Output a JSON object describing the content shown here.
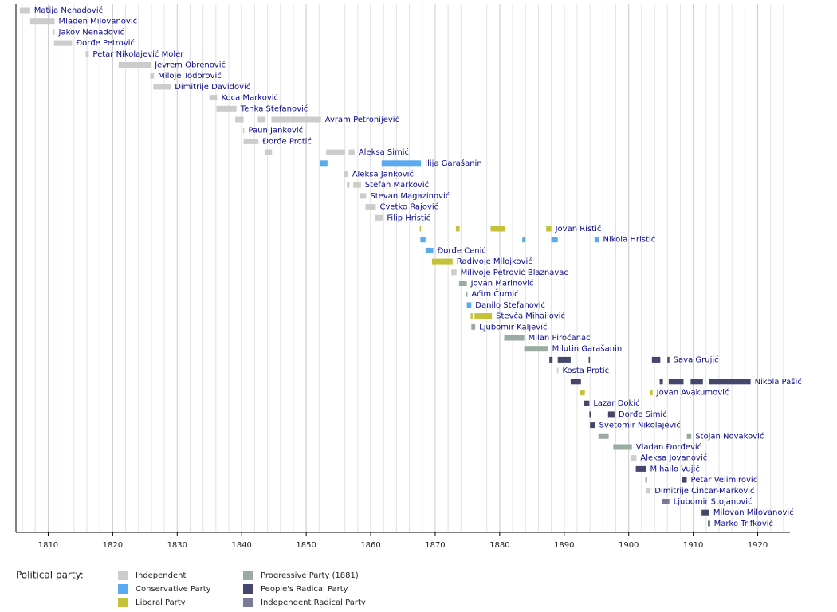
{
  "chart_data": {
    "type": "gantt",
    "xlim": [
      1805,
      1925
    ],
    "xticks": [
      1810,
      1820,
      1830,
      1840,
      1850,
      1860,
      1870,
      1880,
      1890,
      1900,
      1910,
      1920
    ],
    "grid_step": 2,
    "legend_title": "Political party:",
    "parties": [
      {
        "name": "Independent",
        "color": "#cccccc"
      },
      {
        "name": "Conservative Party",
        "color": "#5aaaf0"
      },
      {
        "name": "Liberal Party",
        "color": "#c4c23a"
      },
      {
        "name": "Progressive Party (1881)",
        "color": "#9aaca2"
      },
      {
        "name": "People's Radical Party",
        "color": "#44476a"
      },
      {
        "name": "Independent Radical Party",
        "color": "#7b7b96"
      }
    ],
    "rows": [
      {
        "name": "Matija Nenadović",
        "party": 0,
        "periods": [
          [
            1805.6,
            1807.2
          ]
        ]
      },
      {
        "name": "Mladen Milovanović",
        "party": 0,
        "periods": [
          [
            1807.2,
            1811.0
          ]
        ]
      },
      {
        "name": "Jakov Nenadović",
        "party": 0,
        "periods": [
          [
            1810.8,
            1811.0
          ]
        ]
      },
      {
        "name": "Đorđe Petrović",
        "party": 0,
        "periods": [
          [
            1810.9,
            1813.7
          ]
        ]
      },
      {
        "name": "Petar Nikolajević Moler",
        "party": 0,
        "periods": [
          [
            1815.8,
            1816.3
          ]
        ]
      },
      {
        "name": "Jevrem Obrenović",
        "party": 0,
        "periods": [
          [
            1820.9,
            1825.9
          ]
        ]
      },
      {
        "name": "Miloje Todorović",
        "party": 0,
        "periods": [
          [
            1825.8,
            1826.4
          ]
        ]
      },
      {
        "name": "Dimitrije Davidović",
        "party": 0,
        "periods": [
          [
            1826.3,
            1829.0
          ]
        ]
      },
      {
        "name": "Koca Marković",
        "party": 0,
        "periods": [
          [
            1835.0,
            1836.2
          ]
        ]
      },
      {
        "name": "Tenka Stefanović",
        "party": 0,
        "periods": [
          [
            1836.1,
            1839.2
          ]
        ]
      },
      {
        "name": "Avram Petronijević",
        "party": 0,
        "periods": [
          [
            1839.0,
            1840.3
          ],
          [
            1842.5,
            1843.7
          ],
          [
            1844.6,
            1852.3
          ]
        ]
      },
      {
        "name": "Paun Janković",
        "party": 0,
        "periods": [
          [
            1840.2,
            1840.4
          ]
        ]
      },
      {
        "name": "Đorđe Protić",
        "party": 0,
        "periods": [
          [
            1840.3,
            1842.6
          ]
        ]
      },
      {
        "name": "Aleksa Simić",
        "party": 0,
        "periods": [
          [
            1843.6,
            1844.7
          ],
          [
            1853.1,
            1856.0
          ],
          [
            1856.6,
            1857.5
          ]
        ]
      },
      {
        "name": "Ilija Garašanin",
        "party": 1,
        "periods": [
          [
            1852.1,
            1853.3
          ],
          [
            1861.7,
            1867.8
          ]
        ]
      },
      {
        "name": "Aleksa Janković",
        "party": 0,
        "periods": [
          [
            1855.9,
            1856.5
          ]
        ]
      },
      {
        "name": "Stefan Marković",
        "party": 0,
        "periods": [
          [
            1856.3,
            1856.7
          ],
          [
            1857.3,
            1858.5
          ]
        ]
      },
      {
        "name": "Stevan Magazinović",
        "party": 0,
        "periods": [
          [
            1858.3,
            1859.3
          ]
        ]
      },
      {
        "name": "Cvetko Rajović",
        "party": 0,
        "periods": [
          [
            1859.2,
            1860.8
          ]
        ]
      },
      {
        "name": "Filip Hristić",
        "party": 0,
        "periods": [
          [
            1860.7,
            1861.9
          ]
        ]
      },
      {
        "name": "Jovan Ristić",
        "party": 2,
        "periods": [
          [
            1867.6,
            1867.8
          ],
          [
            1873.2,
            1873.8
          ],
          [
            1878.6,
            1880.8
          ],
          [
            1887.2,
            1888.0
          ]
        ]
      },
      {
        "name": "Nikola Hristić",
        "party": 1,
        "periods": [
          [
            1867.7,
            1868.5
          ],
          [
            1883.5,
            1884.0
          ],
          [
            1888.0,
            1889.0
          ],
          [
            1894.7,
            1895.4
          ]
        ]
      },
      {
        "name": "Đorđe Cenić",
        "party": 1,
        "periods": [
          [
            1868.5,
            1869.7
          ]
        ]
      },
      {
        "name": "Radivoje Milojković",
        "party": 2,
        "periods": [
          [
            1869.5,
            1872.7
          ]
        ]
      },
      {
        "name": "Milivoje Petrović Blaznavac",
        "party": 0,
        "periods": [
          [
            1872.5,
            1873.3
          ]
        ]
      },
      {
        "name": "Jovan Marinović",
        "party": 3,
        "periods": [
          [
            1873.7,
            1874.9
          ]
        ]
      },
      {
        "name": "Aćim Čumić",
        "party": 3,
        "periods": [
          [
            1874.8,
            1875.0
          ]
        ]
      },
      {
        "name": "Danilo Stefanović",
        "party": 1,
        "periods": [
          [
            1874.9,
            1875.6
          ]
        ]
      },
      {
        "name": "Stevča Mihailović",
        "party": 2,
        "periods": [
          [
            1875.5,
            1875.8
          ],
          [
            1876.1,
            1878.8
          ]
        ]
      },
      {
        "name": "Ljubomir Kaljević",
        "party": 3,
        "periods": [
          [
            1875.6,
            1876.2
          ]
        ]
      },
      {
        "name": "Milan Piroćanac",
        "party": 3,
        "periods": [
          [
            1880.7,
            1883.8
          ]
        ]
      },
      {
        "name": "Milutin Garašanin",
        "party": 3,
        "periods": [
          [
            1883.8,
            1887.5
          ]
        ]
      },
      {
        "name": "Sava Grujić",
        "party": 4,
        "periods": [
          [
            1887.7,
            1888.2
          ],
          [
            1889.0,
            1891.0
          ],
          [
            1893.8,
            1894.0
          ],
          [
            1903.6,
            1904.9
          ],
          [
            1906.0,
            1906.3
          ]
        ]
      },
      {
        "name": "Kosta Protić",
        "party": 0,
        "periods": [
          [
            1888.9,
            1889.1
          ]
        ]
      },
      {
        "name": "Nikola Pašić",
        "party": 4,
        "periods": [
          [
            1891.0,
            1892.6
          ],
          [
            1904.8,
            1905.3
          ],
          [
            1906.2,
            1908.5
          ],
          [
            1909.6,
            1911.5
          ],
          [
            1912.5,
            1918.9
          ]
        ]
      },
      {
        "name": "Jovan Avakumović",
        "party": 2,
        "periods": [
          [
            1892.4,
            1893.2
          ],
          [
            1903.3,
            1903.7
          ]
        ]
      },
      {
        "name": "Lazar Dokić",
        "party": 4,
        "periods": [
          [
            1893.1,
            1893.9
          ]
        ]
      },
      {
        "name": "Đorđe Simić",
        "party": 4,
        "periods": [
          [
            1893.9,
            1894.2
          ],
          [
            1896.8,
            1897.8
          ]
        ]
      },
      {
        "name": "Svetomir Nikolajević",
        "party": 4,
        "periods": [
          [
            1894.0,
            1894.8
          ]
        ]
      },
      {
        "name": "Stojan Novaković",
        "party": 3,
        "periods": [
          [
            1895.3,
            1896.9
          ],
          [
            1909.0,
            1909.7
          ]
        ]
      },
      {
        "name": "Vladan Đorđević",
        "party": 3,
        "periods": [
          [
            1897.6,
            1900.5
          ]
        ]
      },
      {
        "name": "Aleksa Jovanović",
        "party": 0,
        "periods": [
          [
            1900.3,
            1901.2
          ]
        ]
      },
      {
        "name": "Mihailo Vujić",
        "party": 4,
        "periods": [
          [
            1901.1,
            1902.7
          ]
        ]
      },
      {
        "name": "Petar Velimirović",
        "party": 4,
        "periods": [
          [
            1902.6,
            1902.8
          ],
          [
            1908.3,
            1909.0
          ]
        ]
      },
      {
        "name": "Dimitrije Cincar-Marković",
        "party": 0,
        "periods": [
          [
            1902.7,
            1903.4
          ]
        ]
      },
      {
        "name": "Ljubomir Stojanović",
        "party": 5,
        "periods": [
          [
            1905.2,
            1906.3
          ]
        ]
      },
      {
        "name": "Milovan Milovanović",
        "party": 4,
        "periods": [
          [
            1911.3,
            1912.5
          ]
        ]
      },
      {
        "name": "Marko Trifković",
        "party": 4,
        "periods": [
          [
            1912.3,
            1912.6
          ]
        ]
      }
    ]
  }
}
